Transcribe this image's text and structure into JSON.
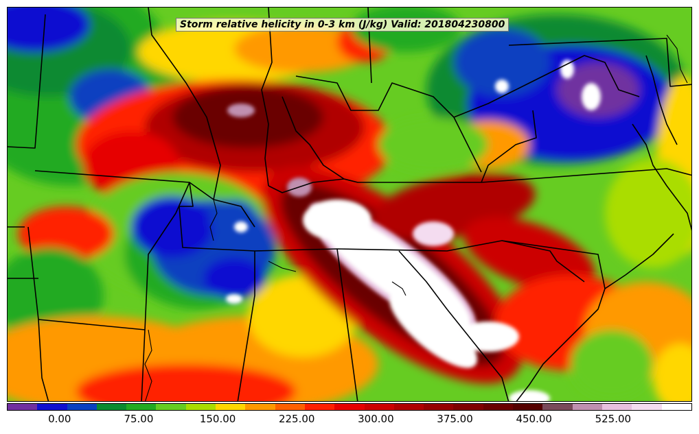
{
  "title": "Storm relative helicity in 0-3 km (J/kg) Valid: 201804230800",
  "colorbar": {
    "min": -50,
    "max": 600,
    "colors": [
      "#7030a0",
      "#1010d0",
      "#0a40c0",
      "#0a8a30",
      "#22aa22",
      "#66cc22",
      "#aadd00",
      "#ffd700",
      "#ff9900",
      "#ff6000",
      "#ff2000",
      "#e60000",
      "#cc0000",
      "#b00000",
      "#960000",
      "#800000",
      "#6a0000",
      "#550000",
      "#7a4a5a",
      "#c090b0",
      "#e8c0e0",
      "#f4dcf0",
      "#ffffff"
    ],
    "tick_labels": [
      "0.00",
      "75.00",
      "150.00",
      "225.00",
      "300.00",
      "375.00",
      "450.00",
      "525.00"
    ],
    "tick_values": [
      0,
      75,
      150,
      225,
      300,
      375,
      450,
      525
    ]
  }
}
